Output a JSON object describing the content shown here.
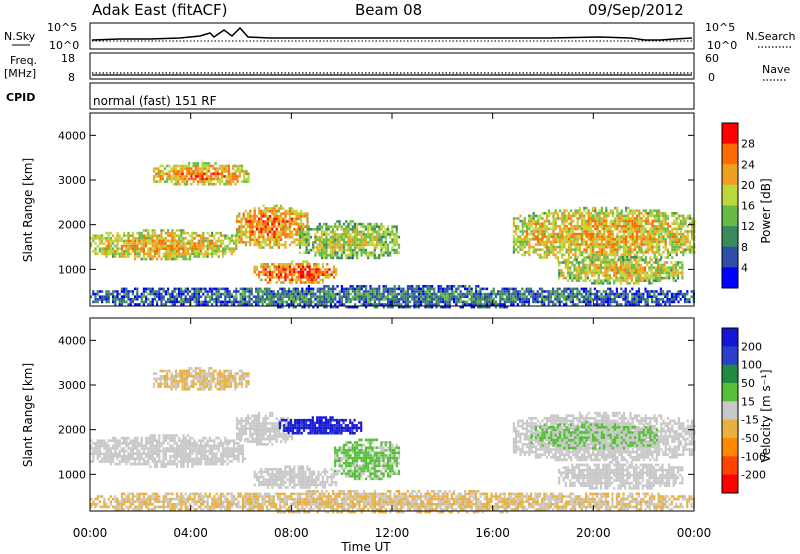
{
  "header": {
    "station": "Adak East (fitACF)",
    "beam": "Beam 08",
    "date": "09/Sep/2012"
  },
  "top_panels": {
    "nsky_label": "N.Sky",
    "nsky_ticks": [
      "10^5",
      "10^0"
    ],
    "nsearch_label": "N.Search",
    "nsearch_ticks": [
      "10^5",
      "10^0"
    ],
    "freq_label": "Freq.",
    "freq_unit": "[MHz]",
    "freq_ticks": [
      "18",
      "8"
    ],
    "nave_label": "Nave",
    "nave_ticks": [
      "60",
      "0"
    ],
    "cpid_label": "CPID",
    "cpid_value": "normal (fast) 151 RF"
  },
  "colors": {
    "power_scale": [
      "#0000ff",
      "#2e4ea8",
      "#3a8a5e",
      "#66bb44",
      "#b9d83a",
      "#f0a020",
      "#ff6a00",
      "#ff0000"
    ],
    "velocity_scale": [
      "#1515d6",
      "#2a3fc8",
      "#1f8a40",
      "#55c035",
      "#c8c8c8",
      "#e8b040",
      "#ff8800",
      "#ff4400",
      "#ff0000"
    ]
  },
  "chart_data": [
    {
      "type": "heatmap",
      "title": "Power",
      "ylabel": "Slant Range [km]",
      "xlabel": "",
      "xlim": [
        "00:00",
        "24:00"
      ],
      "ylim": [
        180,
        4500
      ],
      "y_ticks": [
        "1000",
        "2000",
        "3000",
        "4000"
      ],
      "colorbar": {
        "label": "Power [dB]",
        "ticks": [
          "4",
          "8",
          "12",
          "16",
          "20",
          "24",
          "28"
        ],
        "range": [
          0,
          32
        ]
      },
      "regions": [
        {
          "t0": 0.0,
          "t1": 5.8,
          "r0": 1250,
          "r1": 1900,
          "value": 22
        },
        {
          "t0": 5.8,
          "t1": 8.6,
          "r0": 1500,
          "r1": 2450,
          "value": 25
        },
        {
          "t0": 6.5,
          "t1": 9.8,
          "r0": 700,
          "r1": 1200,
          "value": 26
        },
        {
          "t0": 8.3,
          "t1": 12.3,
          "r0": 1250,
          "r1": 2100,
          "value": 18
        },
        {
          "t0": 2.5,
          "t1": 6.3,
          "r0": 2900,
          "r1": 3400,
          "value": 24
        },
        {
          "t0": 16.8,
          "t1": 24.0,
          "r0": 1200,
          "r1": 2400,
          "value": 22
        },
        {
          "t0": 18.6,
          "t1": 23.5,
          "r0": 700,
          "r1": 1300,
          "value": 20
        },
        {
          "t0": 0.0,
          "t1": 24.0,
          "r0": 180,
          "r1": 650,
          "value": 10
        }
      ]
    },
    {
      "type": "heatmap",
      "title": "Velocity",
      "ylabel": "Slant Range [km]",
      "xlabel": "Time UT",
      "x_ticks": [
        "00:00",
        "04:00",
        "08:00",
        "12:00",
        "16:00",
        "20:00",
        "00:00"
      ],
      "xlim": [
        "00:00",
        "24:00"
      ],
      "ylim": [
        180,
        4500
      ],
      "y_ticks": [
        "1000",
        "2000",
        "3000",
        "4000"
      ],
      "colorbar": {
        "label": "Velocity [m s⁻¹]",
        "ticks": [
          "200",
          "100",
          "50",
          "15",
          "-15",
          "-50",
          "-100",
          "-200"
        ],
        "range": [
          -250,
          250
        ]
      },
      "regions": [
        {
          "t0": 0.0,
          "t1": 6.2,
          "r0": 1200,
          "r1": 1900,
          "value": 0
        },
        {
          "t0": 5.8,
          "t1": 8.0,
          "r0": 1700,
          "r1": 2400,
          "value": 0
        },
        {
          "t0": 6.5,
          "t1": 9.8,
          "r0": 700,
          "r1": 1200,
          "value": 0
        },
        {
          "t0": 7.5,
          "t1": 10.8,
          "r0": 1900,
          "r1": 2300,
          "value": 210
        },
        {
          "t0": 9.7,
          "t1": 12.3,
          "r0": 900,
          "r1": 1800,
          "value": 35
        },
        {
          "t0": 2.5,
          "t1": 6.3,
          "r0": 2900,
          "r1": 3400,
          "value": -30
        },
        {
          "t0": 16.8,
          "t1": 24.0,
          "r0": 1300,
          "r1": 2400,
          "value": 0
        },
        {
          "t0": 17.5,
          "t1": 22.5,
          "r0": 1600,
          "r1": 2200,
          "value": 30
        },
        {
          "t0": 18.6,
          "t1": 23.5,
          "r0": 700,
          "r1": 1300,
          "value": 0
        },
        {
          "t0": 0.0,
          "t1": 24.0,
          "r0": 180,
          "r1": 650,
          "value": -30
        }
      ]
    }
  ]
}
